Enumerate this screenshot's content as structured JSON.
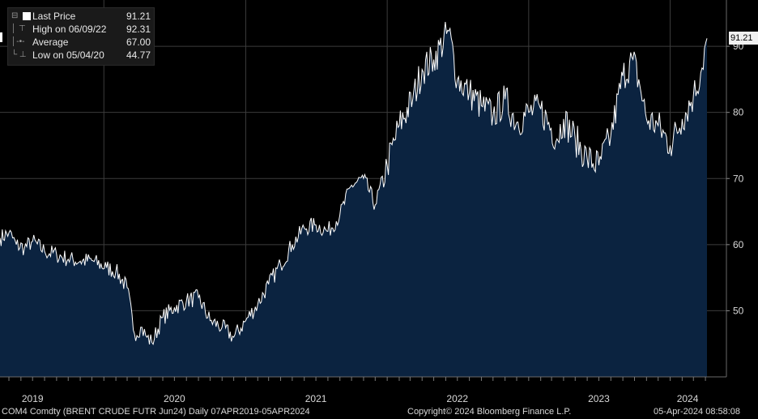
{
  "legend": {
    "last_price": {
      "label": "Last Price",
      "value": "91.21"
    },
    "high": {
      "label": "High on 06/09/22",
      "value": "92.31"
    },
    "average": {
      "label": "Average",
      "value": "67.00"
    },
    "low": {
      "label": "Low on 05/04/20",
      "value": "44.77"
    }
  },
  "price_tag": "91.21",
  "footer": {
    "security": "COM4 Comdty (BRENT CRUDE FUTR  Jun24)  Daily 07APR2019-05APR2024",
    "copyright": "Copyright© 2024 Bloomberg Finance L.P.",
    "timestamp": "05-Apr-2024 08:58:08"
  },
  "colors": {
    "background": "#000000",
    "area_fill": "#0b2340",
    "line": "#ffffff",
    "grid": "#3c3c3c"
  },
  "chart_data": {
    "type": "area",
    "ylim": [
      40,
      97
    ],
    "y_ticks": [
      "50",
      "60",
      "70",
      "80",
      "90"
    ],
    "y_tick_values": [
      50,
      60,
      70,
      80,
      90
    ],
    "x_tick_labels": [
      "2019",
      "2020",
      "2021",
      "2022",
      "2023",
      "2024"
    ],
    "x_tick_dates": [
      "2019-07-01",
      "2020-07-01",
      "2021-07-01",
      "2022-07-01",
      "2023-07-01",
      "2024-02-15"
    ],
    "grid": true,
    "legend_position": "top-left",
    "x": [
      "2019-04-08",
      "2019-05-01",
      "2019-05-20",
      "2019-06-10",
      "2019-07-01",
      "2019-08-01",
      "2019-09-01",
      "2019-10-01",
      "2019-11-01",
      "2019-12-01",
      "2020-01-08",
      "2020-02-01",
      "2020-03-01",
      "2020-03-20",
      "2020-04-05",
      "2020-04-21",
      "2020-05-04",
      "2020-06-01",
      "2020-07-01",
      "2020-08-01",
      "2020-09-01",
      "2020-10-01",
      "2020-11-01",
      "2020-12-01",
      "2021-01-01",
      "2021-02-01",
      "2021-03-01",
      "2021-04-01",
      "2021-05-01",
      "2021-06-01",
      "2021-07-01",
      "2021-08-01",
      "2021-09-01",
      "2021-10-01",
      "2021-11-01",
      "2021-12-01",
      "2022-01-01",
      "2022-02-01",
      "2022-03-08",
      "2022-04-01",
      "2022-05-01",
      "2022-06-09",
      "2022-07-01",
      "2022-08-01",
      "2022-09-01",
      "2022-10-01",
      "2022-11-01",
      "2022-12-01",
      "2023-01-01",
      "2023-02-01",
      "2023-03-15",
      "2023-04-01",
      "2023-05-01",
      "2023-06-01",
      "2023-07-01",
      "2023-08-01",
      "2023-09-01",
      "2023-09-27",
      "2023-10-15",
      "2023-11-01",
      "2023-12-01",
      "2024-01-01",
      "2024-02-01",
      "2024-03-01",
      "2024-03-20",
      "2024-04-05"
    ],
    "series": [
      {
        "values": [
          61.0,
          61.8,
          60.0,
          59.5,
          60.5,
          59.0,
          58.5,
          57.8,
          57.5,
          57.6,
          56.5,
          56.0,
          53.5,
          46.5,
          47.5,
          46.0,
          45.2,
          49.0,
          50.5,
          51.5,
          52.0,
          48.5,
          47.5,
          46.0,
          48.5,
          51.0,
          54.0,
          57.0,
          60.0,
          62.5,
          63.0,
          62.0,
          64.5,
          69.0,
          70.0,
          66.0,
          72.0,
          78.0,
          82.0,
          86.5,
          88.0,
          92.3,
          85.0,
          83.0,
          81.0,
          79.5,
          82.0,
          78.5,
          80.0,
          80.5,
          76.0,
          79.0,
          76.0,
          73.0,
          72.0,
          76.5,
          85.5,
          88.0,
          84.0,
          79.0,
          78.0,
          75.0,
          79.0,
          82.5,
          86.0,
          91.2
        ]
      }
    ]
  }
}
